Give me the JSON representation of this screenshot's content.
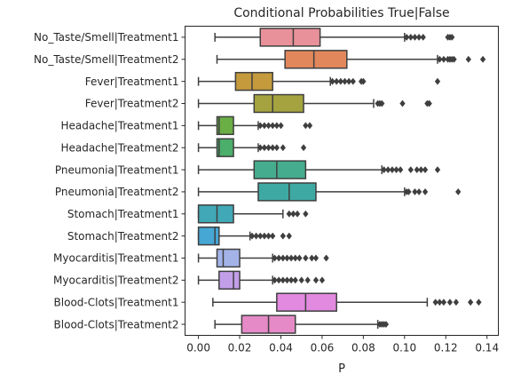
{
  "chart_data": {
    "type": "boxplot",
    "orientation": "horizontal",
    "title": "Conditional Probabilities True|False",
    "xlabel": "P",
    "ylabel": "",
    "xlim": [
      -0.0065,
      0.1455
    ],
    "xticks": [
      0.0,
      0.02,
      0.04,
      0.06,
      0.08,
      0.1,
      0.12,
      0.14
    ],
    "xtick_labels": [
      "0.00",
      "0.02",
      "0.04",
      "0.06",
      "0.08",
      "0.10",
      "0.12",
      "0.14"
    ],
    "grid": false,
    "legend": "none",
    "boxes": [
      {
        "label": "No_Taste/Smell|Treatment1",
        "color": "#e8919a",
        "min": 0.008,
        "q1": 0.03,
        "median": 0.046,
        "q3": 0.059,
        "max": 0.1,
        "outliers": [
          0.101,
          0.103,
          0.105,
          0.107,
          0.109,
          0.121,
          0.122,
          0.123
        ]
      },
      {
        "label": "No_Taste/Smell|Treatment2",
        "color": "#e1875b",
        "min": 0.009,
        "q1": 0.042,
        "median": 0.056,
        "q3": 0.072,
        "max": 0.116,
        "outliers": [
          0.117,
          0.119,
          0.121,
          0.122,
          0.123,
          0.124,
          0.131,
          0.138
        ]
      },
      {
        "label": "Fever|Treatment1",
        "color": "#c49a3c",
        "min": 0.0,
        "q1": 0.018,
        "median": 0.026,
        "q3": 0.036,
        "max": 0.064,
        "outliers": [
          0.065,
          0.067,
          0.069,
          0.071,
          0.073,
          0.075,
          0.079,
          0.08,
          0.116
        ]
      },
      {
        "label": "Fever|Treatment2",
        "color": "#a5a33f",
        "min": 0.0,
        "q1": 0.027,
        "median": 0.036,
        "q3": 0.051,
        "max": 0.085,
        "outliers": [
          0.087,
          0.088,
          0.089,
          0.099,
          0.111,
          0.112
        ]
      },
      {
        "label": "Headache|Treatment1",
        "color": "#6aae46",
        "min": 0.0,
        "q1": 0.009,
        "median": 0.01,
        "q3": 0.017,
        "max": 0.029,
        "outliers": [
          0.03,
          0.032,
          0.034,
          0.036,
          0.038,
          0.04,
          0.052,
          0.054
        ]
      },
      {
        "label": "Headache|Treatment2",
        "color": "#4bae6a",
        "min": 0.0,
        "q1": 0.009,
        "median": 0.01,
        "q3": 0.017,
        "max": 0.029,
        "outliers": [
          0.03,
          0.032,
          0.034,
          0.036,
          0.038,
          0.041,
          0.051
        ]
      },
      {
        "label": "Pneumonia|Treatment1",
        "color": "#45ad8e",
        "min": 0.0,
        "q1": 0.027,
        "median": 0.038,
        "q3": 0.052,
        "max": 0.089,
        "outliers": [
          0.09,
          0.092,
          0.094,
          0.096,
          0.098,
          0.103,
          0.106,
          0.108,
          0.11,
          0.116
        ]
      },
      {
        "label": "Pneumonia|Treatment2",
        "color": "#3ea9a2",
        "min": 0.0,
        "q1": 0.029,
        "median": 0.044,
        "q3": 0.057,
        "max": 0.1,
        "outliers": [
          0.101,
          0.102,
          0.105,
          0.107,
          0.11,
          0.126
        ]
      },
      {
        "label": "Stomach|Treatment1",
        "color": "#40a8b6",
        "min": 0.0,
        "q1": 0.0,
        "median": 0.009,
        "q3": 0.017,
        "max": 0.041,
        "outliers": [
          0.044,
          0.046,
          0.048,
          0.052
        ]
      },
      {
        "label": "Stomach|Treatment2",
        "color": "#46a6d4",
        "min": 0.0,
        "q1": 0.0,
        "median": 0.008,
        "q3": 0.01,
        "max": 0.025,
        "outliers": [
          0.026,
          0.028,
          0.03,
          0.032,
          0.034,
          0.036,
          0.041,
          0.044
        ]
      },
      {
        "label": "Myocarditis|Treatment1",
        "color": "#a3b3e8",
        "min": 0.0,
        "q1": 0.009,
        "median": 0.012,
        "q3": 0.02,
        "max": 0.036,
        "outliers": [
          0.037,
          0.039,
          0.041,
          0.043,
          0.045,
          0.047,
          0.049,
          0.052,
          0.055,
          0.057,
          0.062
        ]
      },
      {
        "label": "Myocarditis|Treatment2",
        "color": "#c39ee8",
        "min": 0.0,
        "q1": 0.01,
        "median": 0.017,
        "q3": 0.02,
        "max": 0.036,
        "outliers": [
          0.037,
          0.039,
          0.041,
          0.043,
          0.045,
          0.047,
          0.05,
          0.053,
          0.057,
          0.06
        ]
      },
      {
        "label": "Blood-Clots|Treatment1",
        "color": "#e289e0",
        "min": 0.007,
        "q1": 0.038,
        "median": 0.052,
        "q3": 0.067,
        "max": 0.111,
        "outliers": [
          0.115,
          0.117,
          0.119,
          0.122,
          0.125,
          0.132,
          0.136
        ]
      },
      {
        "label": "Blood-Clots|Treatment2",
        "color": "#e58ac6",
        "min": 0.008,
        "q1": 0.021,
        "median": 0.034,
        "q3": 0.047,
        "max": 0.087,
        "outliers": [
          0.088,
          0.089,
          0.09,
          0.091
        ]
      }
    ]
  }
}
